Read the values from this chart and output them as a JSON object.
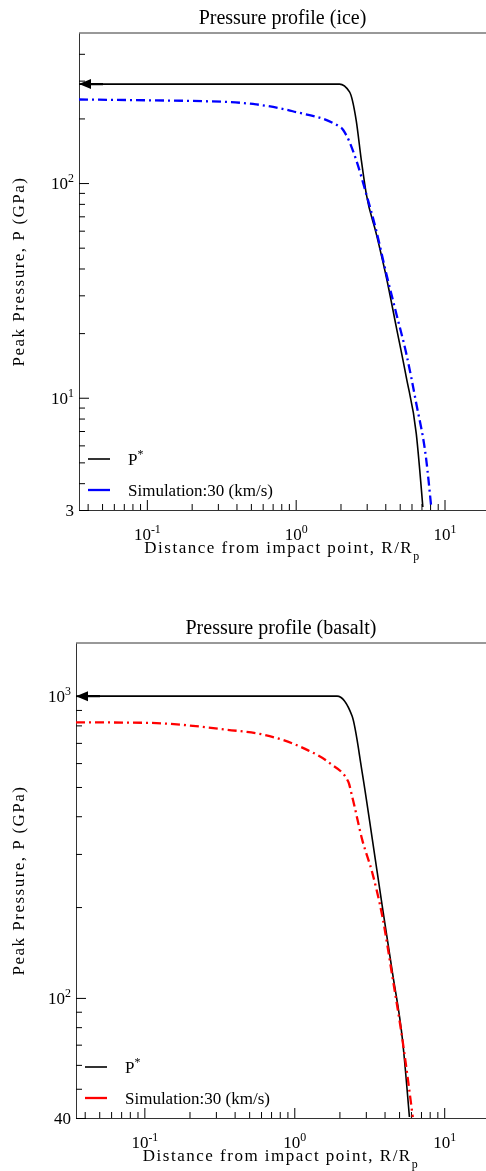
{
  "chart_data": [
    {
      "type": "line",
      "title": "Pressure profile (ice)",
      "xlabel": "Distance from impact point, R/R$_{p}$",
      "ylabel": "Peak Pressure, P (GPa)",
      "log": "xy",
      "legend": "bottom left",
      "grid": false,
      "xlim": [
        0.035,
        19
      ],
      "ylim": [
        3,
        500
      ],
      "xticks": [
        {
          "value": 0.04,
          "label": null
        },
        {
          "value": 0.05,
          "label": null
        },
        {
          "value": 0.06,
          "label": null
        },
        {
          "value": 0.07,
          "label": null
        },
        {
          "value": 0.08,
          "label": null
        },
        {
          "value": 0.09,
          "label": null
        },
        {
          "value": 0.1,
          "label": "10$^{-1}$"
        },
        {
          "value": 0.2,
          "label": null
        },
        {
          "value": 0.3,
          "label": null
        },
        {
          "value": 0.4,
          "label": null
        },
        {
          "value": 0.5,
          "label": null
        },
        {
          "value": 0.6,
          "label": null
        },
        {
          "value": 0.7,
          "label": null
        },
        {
          "value": 0.8,
          "label": null
        },
        {
          "value": 0.9,
          "label": null
        },
        {
          "value": 1,
          "label": "10$^{0}$"
        },
        {
          "value": 2,
          "label": null
        },
        {
          "value": 3,
          "label": null
        },
        {
          "value": 4,
          "label": null
        },
        {
          "value": 5,
          "label": null
        },
        {
          "value": 6,
          "label": null
        },
        {
          "value": 7,
          "label": null
        },
        {
          "value": 8,
          "label": null
        },
        {
          "value": 9,
          "label": null
        },
        {
          "value": 10,
          "label": "10$^{1}$"
        }
      ],
      "yticks": [
        3,
        {
          "value": 4,
          "label": null
        },
        {
          "value": 5,
          "label": null
        },
        {
          "value": 6,
          "label": null
        },
        {
          "value": 7,
          "label": null
        },
        {
          "value": 8,
          "label": null
        },
        {
          "value": 9,
          "label": null
        },
        {
          "value": 10,
          "label": "10$^{1}$"
        },
        {
          "value": 20,
          "label": null
        },
        {
          "value": 30,
          "label": null
        },
        {
          "value": 40,
          "label": null
        },
        {
          "value": 50,
          "label": null
        },
        {
          "value": 60,
          "label": null
        },
        {
          "value": 70,
          "label": null
        },
        {
          "value": 80,
          "label": null
        },
        {
          "value": 90,
          "label": null
        },
        {
          "value": 100,
          "label": "10$^{2}$"
        },
        {
          "value": 200,
          "label": null
        },
        {
          "value": 300,
          "label": null
        },
        {
          "value": 400,
          "label": null
        }
      ],
      "series": [
        {
          "name": "P$^{*}$",
          "color": "#000000",
          "line_style": "solid",
          "x": [
            0.035,
            1.97,
            2.3,
            2.55,
            2.76,
            2.98,
            3.48,
            4.06,
            4.74,
            5.53,
            6.46,
            7.15
          ],
          "values": [
            289,
            289,
            266,
            196,
            128,
            89,
            58,
            36.6,
            21.4,
            12.5,
            6.8,
            3.1
          ]
        },
        {
          "name": "Simulation:30 (km/s)",
          "color": "#0000ff",
          "line_style": "dashdot",
          "x": [
            0.035,
            0.1,
            0.33,
            0.955,
            2.02,
            2.19,
            2.55,
            2.98,
            3.48,
            4.06,
            4.74,
            5.53,
            6.46,
            7.55,
            8.14
          ],
          "values": [
            245,
            243,
            239,
            216,
            181,
            167,
            128,
            89,
            60,
            37.9,
            24.7,
            16.1,
            9.4,
            5.1,
            3.1
          ]
        }
      ]
    },
    {
      "type": "line",
      "title": "Pressure profile (basalt)",
      "xlabel": "Distance from impact point, R/R$_{p}$",
      "ylabel": "Peak Pressure, P (GPa)",
      "log": "xy",
      "legend": "bottom left",
      "grid": false,
      "xlim": [
        0.035,
        19
      ],
      "ylim": [
        40,
        1500
      ],
      "xticks": [
        {
          "value": 0.04,
          "label": null
        },
        {
          "value": 0.05,
          "label": null
        },
        {
          "value": 0.06,
          "label": null
        },
        {
          "value": 0.07,
          "label": null
        },
        {
          "value": 0.08,
          "label": null
        },
        {
          "value": 0.09,
          "label": null
        },
        {
          "value": 0.1,
          "label": "10$^{-1}$"
        },
        {
          "value": 0.2,
          "label": null
        },
        {
          "value": 0.3,
          "label": null
        },
        {
          "value": 0.4,
          "label": null
        },
        {
          "value": 0.5,
          "label": null
        },
        {
          "value": 0.6,
          "label": null
        },
        {
          "value": 0.7,
          "label": null
        },
        {
          "value": 0.8,
          "label": null
        },
        {
          "value": 0.9,
          "label": null
        },
        {
          "value": 1,
          "label": "10$^{0}$"
        },
        {
          "value": 2,
          "label": null
        },
        {
          "value": 3,
          "label": null
        },
        {
          "value": 4,
          "label": null
        },
        {
          "value": 5,
          "label": null
        },
        {
          "value": 6,
          "label": null
        },
        {
          "value": 7,
          "label": null
        },
        {
          "value": 8,
          "label": null
        },
        {
          "value": 9,
          "label": null
        },
        {
          "value": 10,
          "label": "10$^{1}$"
        }
      ],
      "yticks": [
        40,
        {
          "value": 50,
          "label": null
        },
        {
          "value": 60,
          "label": null
        },
        {
          "value": 70,
          "label": null
        },
        {
          "value": 80,
          "label": null
        },
        {
          "value": 90,
          "label": null
        },
        {
          "value": 100,
          "label": "10$^{2}$"
        },
        {
          "value": 200,
          "label": null
        },
        {
          "value": 300,
          "label": null
        },
        {
          "value": 400,
          "label": null
        },
        {
          "value": 500,
          "label": null
        },
        {
          "value": 600,
          "label": null
        },
        {
          "value": 700,
          "label": null
        },
        {
          "value": 800,
          "label": null
        },
        {
          "value": 900,
          "label": null
        },
        {
          "value": 1000,
          "label": "10$^{3}$"
        }
      ],
      "series": [
        {
          "name": "P$^{*}$",
          "color": "#000000",
          "line_style": "solid",
          "x": [
            0.035,
            1.93,
            2.43,
            2.84,
            3.32,
            3.87,
            4.52,
            5.28,
            5.86
          ],
          "values": [
            1000,
            1000,
            859,
            557,
            334,
            200,
            121,
            72,
            40.3
          ]
        },
        {
          "name": "Simulation:30 (km/s)",
          "color": "#ff0000",
          "line_style": "dashdot",
          "x": [
            0.035,
            0.1,
            0.357,
            0.627,
            1.17,
            1.73,
            2.29,
            2.43,
            2.84,
            3.32,
            3.87,
            4.52,
            5.28,
            6.17
          ],
          "values": [
            819,
            816,
            774,
            745,
            670,
            599,
            521,
            466,
            334,
            259,
            186,
            117,
            72,
            40.3
          ]
        }
      ]
    }
  ]
}
